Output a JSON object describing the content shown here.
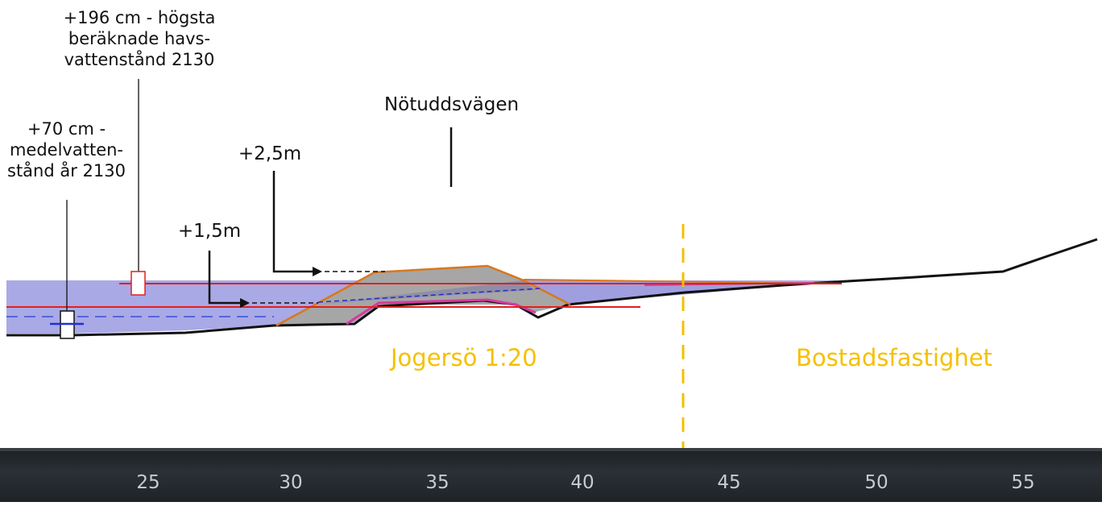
{
  "labels": {
    "high_water": [
      "+196 cm - högsta",
      "beräknade havs-",
      "vattenstånd 2130"
    ],
    "mean_water": [
      "+70 cm -",
      "medelvatten-",
      "stånd år 2130"
    ],
    "road": "Nötuddsvägen",
    "level_25": "+2,5m",
    "level_15": "+1,5m",
    "zone_left": "Jogersö 1:20",
    "zone_right": "Bostadsfastighet"
  },
  "axis": {
    "ticks": [
      "25",
      "30",
      "35",
      "40",
      "45",
      "50",
      "55"
    ]
  },
  "colors": {
    "water": "#a9a9e6",
    "embankment": "#a6a6a6",
    "orange": "#d9771e",
    "magenta": "#d83aa0",
    "red": "#e02020",
    "blue": "#1f2fd6",
    "zone_text": "#f5c000",
    "axis_bg": "#23272b"
  }
}
